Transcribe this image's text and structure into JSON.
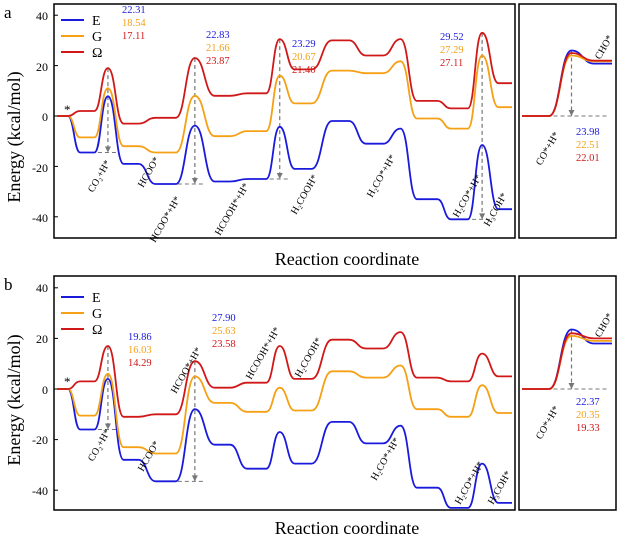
{
  "colors": {
    "E": "#1a1adc",
    "G": "#f5a015",
    "Omega": "#d01818",
    "arrow": "#777777",
    "frame": "#000000"
  },
  "chart_data": [
    {
      "panel_label": "a",
      "type": "line",
      "title": "",
      "xlabel": "Reaction coordinate",
      "ylabel": "Energy (kcal/mol)",
      "ylim": [
        -45,
        42
      ],
      "yticks": [
        "40",
        "20",
        "0",
        "-20",
        "-40"
      ],
      "ytick_values": [
        40,
        20,
        0,
        -20,
        -40
      ],
      "x_range": [
        0,
        64
      ],
      "legend": {
        "position": "top-left",
        "entries": [
          "E",
          "G",
          "Ω"
        ]
      },
      "start_marker": "*",
      "series": [
        {
          "name": "E",
          "points": [
            [
              0,
              0
            ],
            [
              1.6,
              0
            ],
            [
              3.4,
              -14.5
            ],
            [
              5.5,
              -14.5
            ],
            [
              7.5,
              7.8
            ],
            [
              9.8,
              -19
            ],
            [
              12,
              -19
            ],
            [
              14.5,
              -27
            ],
            [
              17.5,
              -27
            ],
            [
              20.3,
              -3.8
            ],
            [
              23.2,
              -26
            ],
            [
              25.5,
              -26
            ],
            [
              28,
              -25
            ],
            [
              30.8,
              -25
            ],
            [
              32.8,
              -4.3
            ],
            [
              35,
              -21
            ],
            [
              37.5,
              -21
            ],
            [
              40.5,
              -2
            ],
            [
              43,
              -2
            ],
            [
              45.5,
              -11
            ],
            [
              48,
              -11
            ],
            [
              50.6,
              -5
            ],
            [
              53,
              -33
            ],
            [
              56,
              -33
            ],
            [
              58,
              -41
            ],
            [
              60.5,
              -41
            ],
            [
              62.6,
              -11.5
            ],
            [
              65,
              -37
            ],
            [
              67,
              -37
            ]
          ]
        },
        {
          "name": "G",
          "points": [
            [
              0,
              0
            ],
            [
              1.6,
              0
            ],
            [
              3.4,
              -8.5
            ],
            [
              5.5,
              -8.5
            ],
            [
              7.5,
              11
            ],
            [
              9.8,
              -12
            ],
            [
              12,
              -12
            ],
            [
              14.5,
              -14.5
            ],
            [
              17.5,
              -14.5
            ],
            [
              20.3,
              8
            ],
            [
              23.2,
              -8
            ],
            [
              25.5,
              -8
            ],
            [
              28,
              -6
            ],
            [
              30.8,
              -6
            ],
            [
              32.8,
              16
            ],
            [
              35,
              5
            ],
            [
              37.5,
              5
            ],
            [
              40.5,
              18
            ],
            [
              43,
              18
            ],
            [
              45.5,
              17
            ],
            [
              48,
              17
            ],
            [
              50.6,
              21.7
            ],
            [
              53,
              -1
            ],
            [
              56,
              -1
            ],
            [
              58,
              -5
            ],
            [
              60.5,
              -5
            ],
            [
              62.6,
              24
            ],
            [
              65,
              3.5
            ],
            [
              67,
              3.5
            ]
          ]
        },
        {
          "name": "Ω",
          "points": [
            [
              0,
              0
            ],
            [
              1.6,
              0
            ],
            [
              3.4,
              2
            ],
            [
              5.5,
              2
            ],
            [
              7.5,
              19
            ],
            [
              9.8,
              -3
            ],
            [
              12,
              -3
            ],
            [
              14.5,
              -0.7
            ],
            [
              17.5,
              -0.7
            ],
            [
              20.3,
              23
            ],
            [
              23.2,
              8
            ],
            [
              25.5,
              8
            ],
            [
              28,
              9
            ],
            [
              30.8,
              9
            ],
            [
              32.8,
              30.5
            ],
            [
              35,
              18.5
            ],
            [
              37.5,
              18.5
            ],
            [
              40.5,
              30
            ],
            [
              43,
              30
            ],
            [
              45.5,
              24
            ],
            [
              48,
              24
            ],
            [
              50.6,
              30.5
            ],
            [
              53,
              6
            ],
            [
              56,
              6
            ],
            [
              58,
              3
            ],
            [
              60.5,
              3
            ],
            [
              62.6,
              33
            ],
            [
              65,
              13
            ],
            [
              67,
              13
            ]
          ]
        }
      ],
      "species_labels": [
        "CO₂+H*",
        "HCOO*",
        "HCOO*+H*",
        "HCOOH*+H*",
        "H₂COOH*",
        "H₂CO*+H*",
        "H₂CO*+H*",
        "H₃COH*"
      ],
      "barrier_annotations": [
        {
          "x": 7.5,
          "lines": [
            "22.31",
            "18.54",
            "17.11"
          ]
        },
        {
          "x": 20.3,
          "lines": [
            "22.83",
            "21.66",
            "23.87"
          ]
        },
        {
          "x": 32.8,
          "lines": [
            "23.29",
            "20.67",
            "21.40"
          ]
        },
        {
          "x": 62.6,
          "lines": [
            "29.52",
            "27.29",
            "27.11"
          ]
        }
      ],
      "inset": {
        "start_species": "CO*+H*",
        "end_species": "CHO*",
        "series_points": {
          "E": [
            [
              0,
              0
            ],
            [
              0.3,
              0
            ],
            [
              0.55,
              26
            ],
            [
              0.8,
              20.8
            ],
            [
              1,
              20.8
            ]
          ],
          "G": [
            [
              0,
              0
            ],
            [
              0.3,
              0
            ],
            [
              0.55,
              24
            ],
            [
              0.8,
              21.7
            ],
            [
              1,
              21.7
            ]
          ],
          "Ω": [
            [
              0,
              0
            ],
            [
              0.3,
              0
            ],
            [
              0.55,
              25
            ],
            [
              0.8,
              22
            ],
            [
              1,
              22
            ]
          ]
        },
        "barriers": [
          "23.98",
          "22.51",
          "22.01"
        ]
      }
    },
    {
      "panel_label": "b",
      "type": "line",
      "title": "",
      "xlabel": "Reaction coordinate",
      "ylabel": "Energy (kcal/mol)",
      "ylim": [
        -50,
        42
      ],
      "yticks": [
        "40",
        "20",
        "0",
        "-20",
        "-40"
      ],
      "ytick_values": [
        40,
        20,
        0,
        -20,
        -40
      ],
      "x_range": [
        0,
        64
      ],
      "legend": {
        "position": "top-left",
        "entries": [
          "E",
          "G",
          "Ω"
        ]
      },
      "start_marker": "*",
      "series": [
        {
          "name": "E",
          "points": [
            [
              0,
              0
            ],
            [
              1.6,
              0
            ],
            [
              3.4,
              -16
            ],
            [
              5.5,
              -16
            ],
            [
              7.5,
              4
            ],
            [
              9.8,
              -28
            ],
            [
              12,
              -28
            ],
            [
              14.5,
              -36.5
            ],
            [
              17.5,
              -36.5
            ],
            [
              20.3,
              -8
            ],
            [
              23.2,
              -22
            ],
            [
              25.5,
              -22
            ],
            [
              28,
              -31.5
            ],
            [
              30.8,
              -31.5
            ],
            [
              32.8,
              -17
            ],
            [
              35,
              -29.5
            ],
            [
              37.5,
              -29.5
            ],
            [
              40.5,
              -13
            ],
            [
              43,
              -13
            ],
            [
              45.5,
              -21.5
            ],
            [
              48,
              -21.5
            ],
            [
              50.6,
              -14.5
            ],
            [
              53,
              -39
            ],
            [
              56,
              -39
            ],
            [
              58,
              -47
            ],
            [
              60.5,
              -47
            ],
            [
              62.6,
              -29.5
            ],
            [
              65,
              -45
            ],
            [
              67,
              -45
            ]
          ]
        },
        {
          "name": "G",
          "points": [
            [
              0,
              0
            ],
            [
              1.6,
              0
            ],
            [
              3.4,
              -10.5
            ],
            [
              5.5,
              -10.5
            ],
            [
              7.5,
              6
            ],
            [
              9.8,
              -23
            ],
            [
              12,
              -23
            ],
            [
              14.5,
              -25.5
            ],
            [
              17.5,
              -25.5
            ],
            [
              20.3,
              5
            ],
            [
              23.2,
              -5.5
            ],
            [
              25.5,
              -5.5
            ],
            [
              28,
              -9
            ],
            [
              30.8,
              -9
            ],
            [
              32.8,
              0.5
            ],
            [
              35,
              -8.5
            ],
            [
              37.5,
              -8.5
            ],
            [
              40.5,
              7
            ],
            [
              43,
              7
            ],
            [
              45.5,
              4.5
            ],
            [
              48,
              4.5
            ],
            [
              50.6,
              9.3
            ],
            [
              53,
              -8
            ],
            [
              56,
              -8
            ],
            [
              58,
              -11
            ],
            [
              60.5,
              -11
            ],
            [
              62.6,
              1.5
            ],
            [
              65,
              -9.5
            ],
            [
              67,
              -9.5
            ]
          ]
        },
        {
          "name": "Ω",
          "points": [
            [
              0,
              0
            ],
            [
              1.6,
              0
            ],
            [
              3.4,
              3
            ],
            [
              5.5,
              3
            ],
            [
              7.5,
              17
            ],
            [
              9.8,
              -11
            ],
            [
              12,
              -11
            ],
            [
              14.5,
              -10
            ],
            [
              17.5,
              -10
            ],
            [
              20.3,
              11
            ],
            [
              23.2,
              0.5
            ],
            [
              25.5,
              0.5
            ],
            [
              28,
              2.5
            ],
            [
              30.8,
              2.5
            ],
            [
              32.8,
              17
            ],
            [
              35,
              4
            ],
            [
              37.5,
              4
            ],
            [
              40.5,
              19.5
            ],
            [
              43,
              19.5
            ],
            [
              45.5,
              16
            ],
            [
              48,
              16
            ],
            [
              50.6,
              22.5
            ],
            [
              53,
              4.5
            ],
            [
              56,
              4.5
            ],
            [
              58,
              3
            ],
            [
              60.5,
              3
            ],
            [
              62.6,
              14
            ],
            [
              65,
              5
            ],
            [
              67,
              5
            ]
          ]
        }
      ],
      "species_labels": [
        "CO₂+H*",
        "HCOO*",
        "HCOO*+H*",
        "HCOOH*+H*",
        "H₂COOH*",
        "H₂CO*+H*",
        "H₂CO*+H*",
        "H₃COH*"
      ],
      "barrier_annotations": [
        {
          "x": 7.5,
          "lines": [
            "19.86",
            "16.03",
            "14.29"
          ]
        },
        {
          "x": 20.3,
          "lines": [
            "27.90",
            "25.63",
            "23.58"
          ]
        }
      ],
      "inset": {
        "start_species": "CO*+H*",
        "end_species": "CHO*",
        "series_points": {
          "E": [
            [
              0,
              0
            ],
            [
              0.3,
              0
            ],
            [
              0.55,
              23.5
            ],
            [
              0.8,
              18
            ],
            [
              1,
              18
            ]
          ],
          "G": [
            [
              0,
              0
            ],
            [
              0.3,
              0
            ],
            [
              0.55,
              21
            ],
            [
              0.8,
              19
            ],
            [
              1,
              19
            ]
          ],
          "Ω": [
            [
              0,
              0
            ],
            [
              0.3,
              0
            ],
            [
              0.55,
              22
            ],
            [
              0.8,
              20
            ],
            [
              1,
              20
            ]
          ]
        },
        "barriers": [
          "22.37",
          "20.35",
          "19.33"
        ]
      }
    }
  ]
}
